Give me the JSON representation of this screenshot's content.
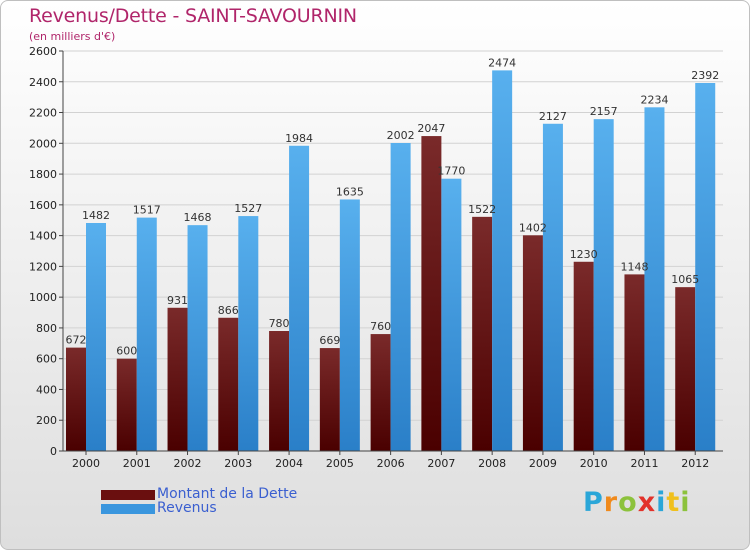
{
  "chart_data": {
    "type": "bar",
    "title": "Revenus/Dette - SAINT-SAVOURNIN",
    "subtitle": "(en milliers d'€)",
    "categories": [
      "2000",
      "2001",
      "2002",
      "2003",
      "2004",
      "2005",
      "2006",
      "2007",
      "2008",
      "2009",
      "2010",
      "2011",
      "2012"
    ],
    "series": [
      {
        "name": "Montant de la Dette",
        "color": "#6a0f0f",
        "values": [
          672,
          600,
          931,
          866,
          780,
          669,
          760,
          2047,
          1522,
          1402,
          1230,
          1148,
          1065
        ]
      },
      {
        "name": "Revenus",
        "color": "#3a96de",
        "values": [
          1482,
          1517,
          1468,
          1527,
          1984,
          1635,
          2002,
          1770,
          2474,
          2127,
          2157,
          2234,
          2392
        ]
      }
    ],
    "ylim": [
      0,
      2600
    ],
    "yticks": [
      0,
      200,
      400,
      600,
      800,
      1000,
      1200,
      1400,
      1600,
      1800,
      2000,
      2200,
      2400,
      2600
    ],
    "grid": true,
    "legend": "bottom-left",
    "logo": "Proxiti"
  }
}
